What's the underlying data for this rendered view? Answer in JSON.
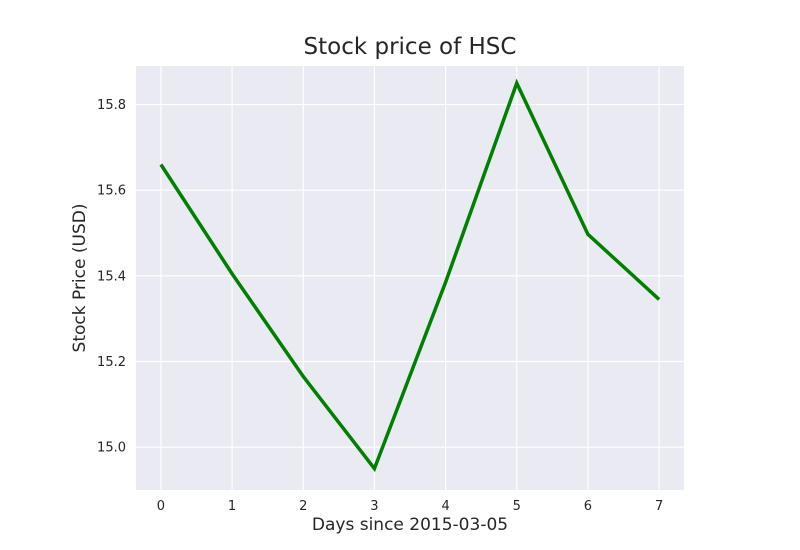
{
  "chart_data": {
    "type": "line",
    "title": "Stock price of HSC",
    "xlabel": "Days since 2015-03-05",
    "ylabel": "Stock Price (USD)",
    "x": [
      0,
      1,
      2,
      3,
      4,
      5,
      6,
      7
    ],
    "series": [
      {
        "values": [
          15.66,
          15.405,
          15.165,
          14.95,
          15.385,
          15.85,
          15.497,
          15.345
        ],
        "color": "#008000"
      }
    ],
    "xlim": [
      -0.35,
      7.35
    ],
    "ylim": [
      14.9,
      15.89
    ],
    "xticks": [
      "0",
      "1",
      "2",
      "3",
      "4",
      "5",
      "6",
      "7"
    ],
    "yticks": [
      "15.0",
      "15.2",
      "15.4",
      "15.6",
      "15.8"
    ],
    "grid": true,
    "style": {
      "plot_background": "#eaeaf2",
      "grid_color": "#ffffff"
    }
  }
}
